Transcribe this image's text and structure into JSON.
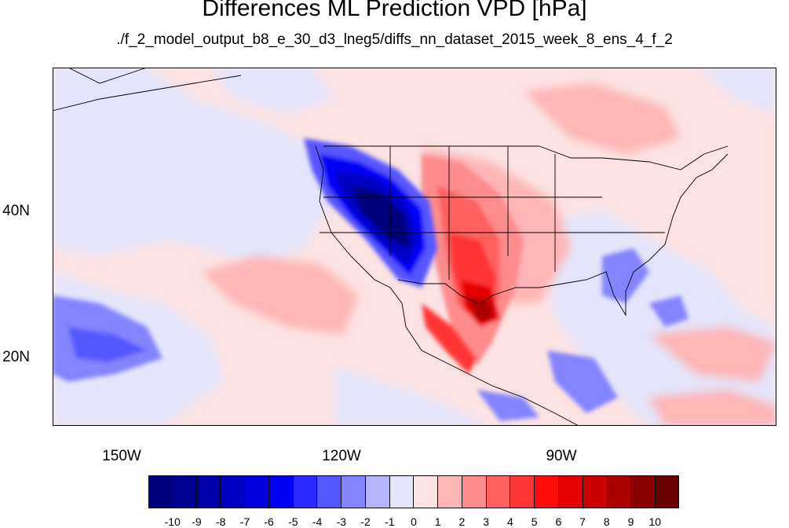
{
  "title": "Differences ML Prediction VPD [hPa]",
  "subtitle": "./f_2_model_output_b8_e_30_d3_lneg5/diffs_nn_dataset_2015_week_8_ens_4_f_2",
  "longitude_labels": [
    "150W",
    "120W",
    "90W"
  ],
  "latitude_labels": [
    "40N",
    "20N"
  ],
  "map_extent": {
    "lon_min": -159.5,
    "lon_max": -60,
    "lat_min": 11,
    "lat_max": 59.5
  },
  "colorbar": {
    "labels": [
      "-10",
      "-9",
      "-8",
      "-7",
      "-6",
      "-5",
      "-4",
      "-3",
      "-2",
      "-1",
      "0",
      "1",
      "2",
      "3",
      "4",
      "5",
      "6",
      "7",
      "8",
      "9",
      "10"
    ],
    "colors": [
      "#00007a",
      "#000090",
      "#0000a8",
      "#0000c2",
      "#0000dc",
      "#0000f5",
      "#2a2aff",
      "#5656ff",
      "#8484ff",
      "#b4b4ff",
      "#e4e4fa",
      "#fbe3e3",
      "#ffb6b6",
      "#ff8c8c",
      "#ff6060",
      "#ff3636",
      "#ff0c0c",
      "#e40000",
      "#c80000",
      "#aa0000",
      "#880000",
      "#6a0000"
    ]
  },
  "colors": {
    "negative_strong": "#000090",
    "neutral": "#ffffff",
    "positive_strong": "#aa0000"
  }
}
